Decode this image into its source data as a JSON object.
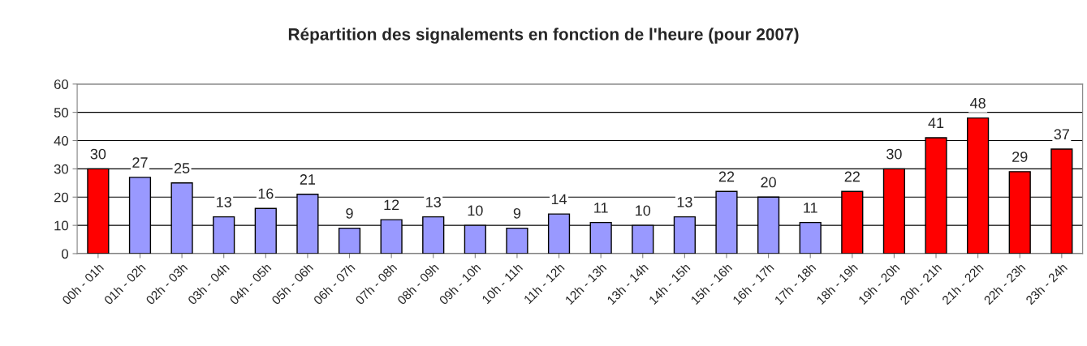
{
  "chart_data": {
    "type": "bar",
    "title": "Répartition des signalements en fonction de l'heure (pour 2007)",
    "categories": [
      "00h - 01h",
      "01h - 02h",
      "02h - 03h",
      "03h - 04h",
      "04h - 05h",
      "05h - 06h",
      "06h - 07h",
      "07h - 08h",
      "08h - 09h",
      "09h - 10h",
      "10h - 11h",
      "11h - 12h",
      "12h - 13h",
      "13h - 14h",
      "14h - 15h",
      "15h - 16h",
      "16h - 17h",
      "17h - 18h",
      "18h - 19h",
      "19h - 20h",
      "20h - 21h",
      "21h - 22h",
      "22h - 23h",
      "23h - 24h"
    ],
    "values": [
      30,
      27,
      25,
      13,
      16,
      21,
      9,
      12,
      13,
      10,
      9,
      14,
      11,
      10,
      13,
      22,
      20,
      11,
      22,
      30,
      41,
      48,
      29,
      37
    ],
    "colors": [
      "#ff0000",
      "#9999ff",
      "#9999ff",
      "#9999ff",
      "#9999ff",
      "#9999ff",
      "#9999ff",
      "#9999ff",
      "#9999ff",
      "#9999ff",
      "#9999ff",
      "#9999ff",
      "#9999ff",
      "#9999ff",
      "#9999ff",
      "#9999ff",
      "#9999ff",
      "#9999ff",
      "#ff0000",
      "#ff0000",
      "#ff0000",
      "#ff0000",
      "#ff0000",
      "#ff0000"
    ],
    "ylim": [
      0,
      60
    ],
    "yticks": [
      0,
      10,
      20,
      30,
      40,
      50,
      60
    ],
    "grid": "y",
    "data_labels": true,
    "legend": false
  }
}
